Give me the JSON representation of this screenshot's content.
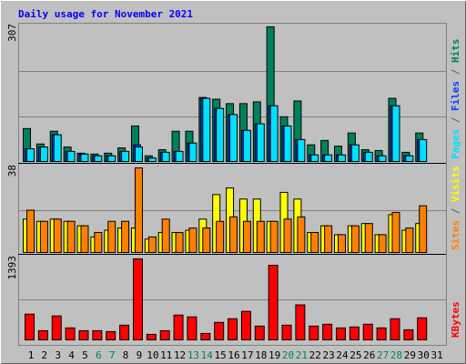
{
  "chart_data": [
    {
      "type": "bar",
      "title": "Daily usage for November 2021",
      "ylim": [
        0,
        307
      ],
      "yticks": [
        307
      ],
      "grid": true,
      "legend_separator": " / ",
      "series": [
        {
          "name": "Hits",
          "color": "#00805c",
          "values": [
            75,
            40,
            69,
            33,
            19,
            17,
            19,
            31,
            81,
            13,
            27,
            69,
            69,
            146,
            142,
            132,
            132,
            136,
            307,
            102,
            138,
            38,
            48,
            35,
            65,
            27,
            25,
            144,
            21,
            65,
            0
          ]
        },
        {
          "name": "Files",
          "color": "#0040ff",
          "values": [
            29,
            33,
            61,
            23,
            17,
            13,
            13,
            23,
            38,
            8,
            21,
            23,
            42,
            144,
            121,
            107,
            71,
            86,
            127,
            81,
            50,
            15,
            15,
            15,
            38,
            21,
            13,
            127,
            13,
            50,
            0
          ]
        },
        {
          "name": "Pages",
          "color": "#00e0ff",
          "values": [
            29,
            33,
            61,
            23,
            17,
            13,
            13,
            23,
            33,
            8,
            21,
            23,
            42,
            144,
            121,
            107,
            71,
            86,
            127,
            81,
            50,
            15,
            15,
            15,
            38,
            21,
            13,
            127,
            13,
            50,
            0
          ]
        }
      ]
    },
    {
      "type": "bar",
      "ylim": [
        0,
        38
      ],
      "yticks": [
        38
      ],
      "grid": true,
      "legend_separator": " / ",
      "series": [
        {
          "name": "Visits",
          "color": "#ffff00",
          "values": [
            15,
            14,
            15,
            14,
            12,
            7,
            10,
            11,
            11,
            6,
            9,
            9,
            10,
            15,
            26,
            29,
            24,
            24,
            14,
            27,
            24,
            9,
            12,
            8,
            12,
            13,
            8,
            17,
            10,
            13,
            0
          ]
        },
        {
          "name": "Sites",
          "color": "#ff8000",
          "values": [
            19,
            14,
            15,
            14,
            12,
            9,
            14,
            14,
            38,
            7,
            15,
            9,
            11,
            11,
            14,
            16,
            14,
            14,
            14,
            15,
            16,
            9,
            12,
            8,
            12,
            13,
            8,
            18,
            11,
            21,
            0
          ]
        }
      ]
    },
    {
      "type": "bar",
      "ylim": [
        0,
        1393
      ],
      "yticks": [
        1393
      ],
      "grid": true,
      "categories": [
        "1",
        "2",
        "3",
        "4",
        "5",
        "6",
        "7",
        "8",
        "9",
        "10",
        "11",
        "12",
        "13",
        "14",
        "15",
        "16",
        "17",
        "18",
        "19",
        "20",
        "21",
        "22",
        "23",
        "24",
        "25",
        "26",
        "27",
        "28",
        "29",
        "30",
        "31"
      ],
      "highlight_categories": [
        "6",
        "7",
        "13",
        "14",
        "20",
        "21",
        "27",
        "28"
      ],
      "highlight_color": "#00805c",
      "series": [
        {
          "name": "KBytes",
          "color": "#ff0000",
          "values": [
            443,
            158,
            412,
            206,
            158,
            158,
            142,
            253,
            1393,
            95,
            158,
            427,
            396,
            111,
            301,
            364,
            491,
            237,
            1282,
            253,
            602,
            237,
            269,
            206,
            222,
            269,
            206,
            364,
            174,
            380,
            0
          ]
        }
      ]
    }
  ]
}
